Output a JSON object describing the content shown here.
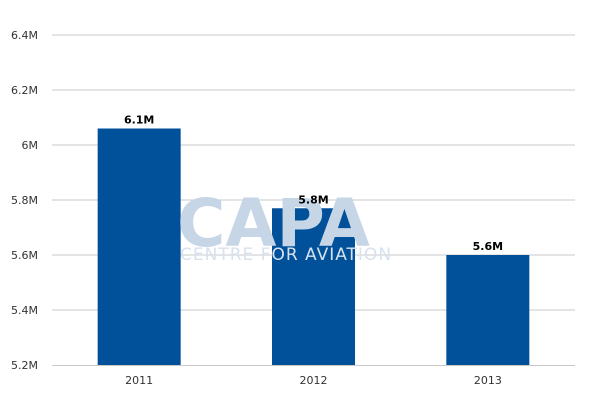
{
  "chart_data": {
    "type": "bar",
    "categories": [
      "2011",
      "2012",
      "2013"
    ],
    "values": [
      6.06,
      5.77,
      5.6
    ],
    "data_labels": [
      "6.1M",
      "5.8M",
      "5.6M"
    ],
    "y_ticks": [
      {
        "value": 5.2,
        "label": "5.2M"
      },
      {
        "value": 5.4,
        "label": "5.4M"
      },
      {
        "value": 5.6,
        "label": "5.6M"
      },
      {
        "value": 5.8,
        "label": "5.8M"
      },
      {
        "value": 6.0,
        "label": "6M"
      },
      {
        "value": 6.2,
        "label": "6.2M"
      },
      {
        "value": 6.4,
        "label": "6.4M"
      }
    ],
    "ylim": [
      5.2,
      6.4
    ],
    "grid": true,
    "bar_color": "#00519a",
    "title": "",
    "xlabel": "",
    "ylabel": ""
  },
  "watermark": {
    "logo_text": "CAPA",
    "tagline": "CENTRE FOR AVIATION"
  }
}
